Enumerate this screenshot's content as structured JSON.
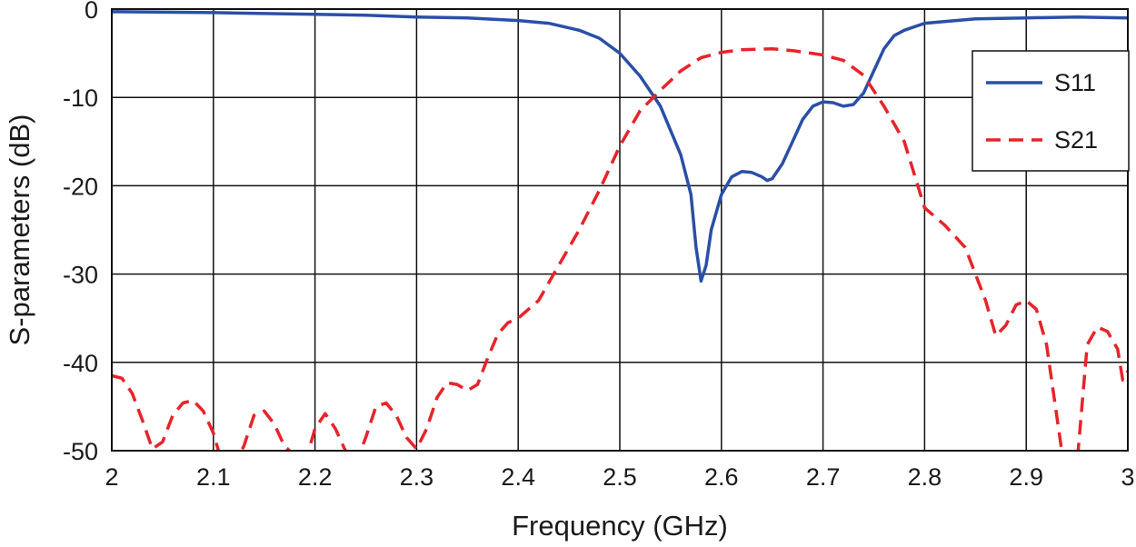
{
  "chart_data": {
    "type": "line",
    "title": "",
    "xlabel": "Frequency (GHz)",
    "ylabel": "S-parameters (dB)",
    "xlim": [
      2,
      3
    ],
    "ylim": [
      -50,
      0
    ],
    "xticks": [
      2,
      2.1,
      2.2,
      2.3,
      2.4,
      2.5,
      2.6,
      2.7,
      2.8,
      2.9,
      3
    ],
    "xtick_labels": [
      "2",
      "2.1",
      "2.2",
      "2.3",
      "2.4",
      "2.5",
      "2.6",
      "2.7",
      "2.8",
      "2.9",
      "3"
    ],
    "yticks": [
      0,
      -10,
      -20,
      -30,
      -40,
      -50
    ],
    "ytick_labels": [
      "0",
      "-10",
      "-20",
      "-30",
      "-40",
      "-50"
    ],
    "grid": true,
    "legend_position": "top-right",
    "series": [
      {
        "name": "S11",
        "color": "#2a4fa8",
        "style": "solid",
        "points": [
          [
            2.0,
            -0.3
          ],
          [
            2.1,
            -0.4
          ],
          [
            2.15,
            -0.5
          ],
          [
            2.2,
            -0.6
          ],
          [
            2.25,
            -0.7
          ],
          [
            2.3,
            -0.9
          ],
          [
            2.35,
            -1.0
          ],
          [
            2.4,
            -1.3
          ],
          [
            2.43,
            -1.6
          ],
          [
            2.46,
            -2.4
          ],
          [
            2.48,
            -3.3
          ],
          [
            2.5,
            -5.0
          ],
          [
            2.52,
            -7.6
          ],
          [
            2.54,
            -11.0
          ],
          [
            2.56,
            -16.5
          ],
          [
            2.57,
            -21.0
          ],
          [
            2.575,
            -27.0
          ],
          [
            2.58,
            -30.8
          ],
          [
            2.585,
            -29.0
          ],
          [
            2.59,
            -25.0
          ],
          [
            2.6,
            -21.0
          ],
          [
            2.61,
            -19.0
          ],
          [
            2.62,
            -18.4
          ],
          [
            2.63,
            -18.5
          ],
          [
            2.64,
            -19.0
          ],
          [
            2.645,
            -19.4
          ],
          [
            2.65,
            -19.2
          ],
          [
            2.66,
            -17.5
          ],
          [
            2.67,
            -15.0
          ],
          [
            2.68,
            -12.5
          ],
          [
            2.69,
            -11.0
          ],
          [
            2.7,
            -10.5
          ],
          [
            2.71,
            -10.6
          ],
          [
            2.72,
            -11.0
          ],
          [
            2.73,
            -10.8
          ],
          [
            2.74,
            -9.5
          ],
          [
            2.75,
            -7.0
          ],
          [
            2.76,
            -4.5
          ],
          [
            2.77,
            -3.0
          ],
          [
            2.78,
            -2.4
          ],
          [
            2.8,
            -1.6
          ],
          [
            2.85,
            -1.1
          ],
          [
            2.9,
            -1.0
          ],
          [
            2.95,
            -0.9
          ],
          [
            3.0,
            -1.0
          ]
        ]
      },
      {
        "name": "S21",
        "color": "#e8232a",
        "style": "dashed",
        "points": [
          [
            2.0,
            -41.5
          ],
          [
            2.01,
            -41.8
          ],
          [
            2.02,
            -43.5
          ],
          [
            2.03,
            -46.5
          ],
          [
            2.04,
            -49.8
          ],
          [
            2.05,
            -49.0
          ],
          [
            2.06,
            -46.0
          ],
          [
            2.07,
            -44.6
          ],
          [
            2.08,
            -44.3
          ],
          [
            2.09,
            -45.5
          ],
          [
            2.1,
            -48.0
          ],
          [
            2.105,
            -50.0
          ],
          [
            2.12,
            -51.5
          ],
          [
            2.13,
            -49.5
          ],
          [
            2.14,
            -46.0
          ],
          [
            2.15,
            -45.5
          ],
          [
            2.16,
            -47.0
          ],
          [
            2.17,
            -49.5
          ],
          [
            2.175,
            -50.0
          ],
          [
            2.19,
            -51.5
          ],
          [
            2.2,
            -47.5
          ],
          [
            2.21,
            -45.8
          ],
          [
            2.22,
            -47.5
          ],
          [
            2.23,
            -50.0
          ],
          [
            2.24,
            -51.5
          ],
          [
            2.25,
            -48.5
          ],
          [
            2.26,
            -45.0
          ],
          [
            2.27,
            -44.6
          ],
          [
            2.28,
            -46.0
          ],
          [
            2.29,
            -48.5
          ],
          [
            2.3,
            -49.8
          ],
          [
            2.31,
            -47.5
          ],
          [
            2.32,
            -44.0
          ],
          [
            2.33,
            -42.3
          ],
          [
            2.34,
            -42.5
          ],
          [
            2.35,
            -43.2
          ],
          [
            2.36,
            -42.5
          ],
          [
            2.37,
            -39.5
          ],
          [
            2.38,
            -36.8
          ],
          [
            2.39,
            -35.5
          ],
          [
            2.4,
            -35.0
          ],
          [
            2.42,
            -33.0
          ],
          [
            2.44,
            -29.0
          ],
          [
            2.46,
            -25.0
          ],
          [
            2.48,
            -20.5
          ],
          [
            2.5,
            -15.5
          ],
          [
            2.52,
            -11.5
          ],
          [
            2.54,
            -9.2
          ],
          [
            2.56,
            -7.0
          ],
          [
            2.58,
            -5.5
          ],
          [
            2.6,
            -4.9
          ],
          [
            2.62,
            -4.6
          ],
          [
            2.65,
            -4.5
          ],
          [
            2.67,
            -4.7
          ],
          [
            2.7,
            -5.2
          ],
          [
            2.72,
            -5.8
          ],
          [
            2.74,
            -7.5
          ],
          [
            2.76,
            -11.0
          ],
          [
            2.78,
            -15.0
          ],
          [
            2.8,
            -22.5
          ],
          [
            2.82,
            -24.5
          ],
          [
            2.84,
            -27.0
          ],
          [
            2.86,
            -33.0
          ],
          [
            2.87,
            -37.0
          ],
          [
            2.88,
            -35.8
          ],
          [
            2.89,
            -33.5
          ],
          [
            2.9,
            -33.0
          ],
          [
            2.91,
            -34.0
          ],
          [
            2.92,
            -38.0
          ],
          [
            2.93,
            -46.0
          ],
          [
            2.935,
            -50.0
          ],
          [
            2.95,
            -51.5
          ],
          [
            2.96,
            -38.0
          ],
          [
            2.97,
            -36.0
          ],
          [
            2.98,
            -36.5
          ],
          [
            2.99,
            -38.5
          ],
          [
            2.995,
            -42.0
          ],
          [
            3.0,
            -41.0
          ]
        ]
      }
    ]
  }
}
